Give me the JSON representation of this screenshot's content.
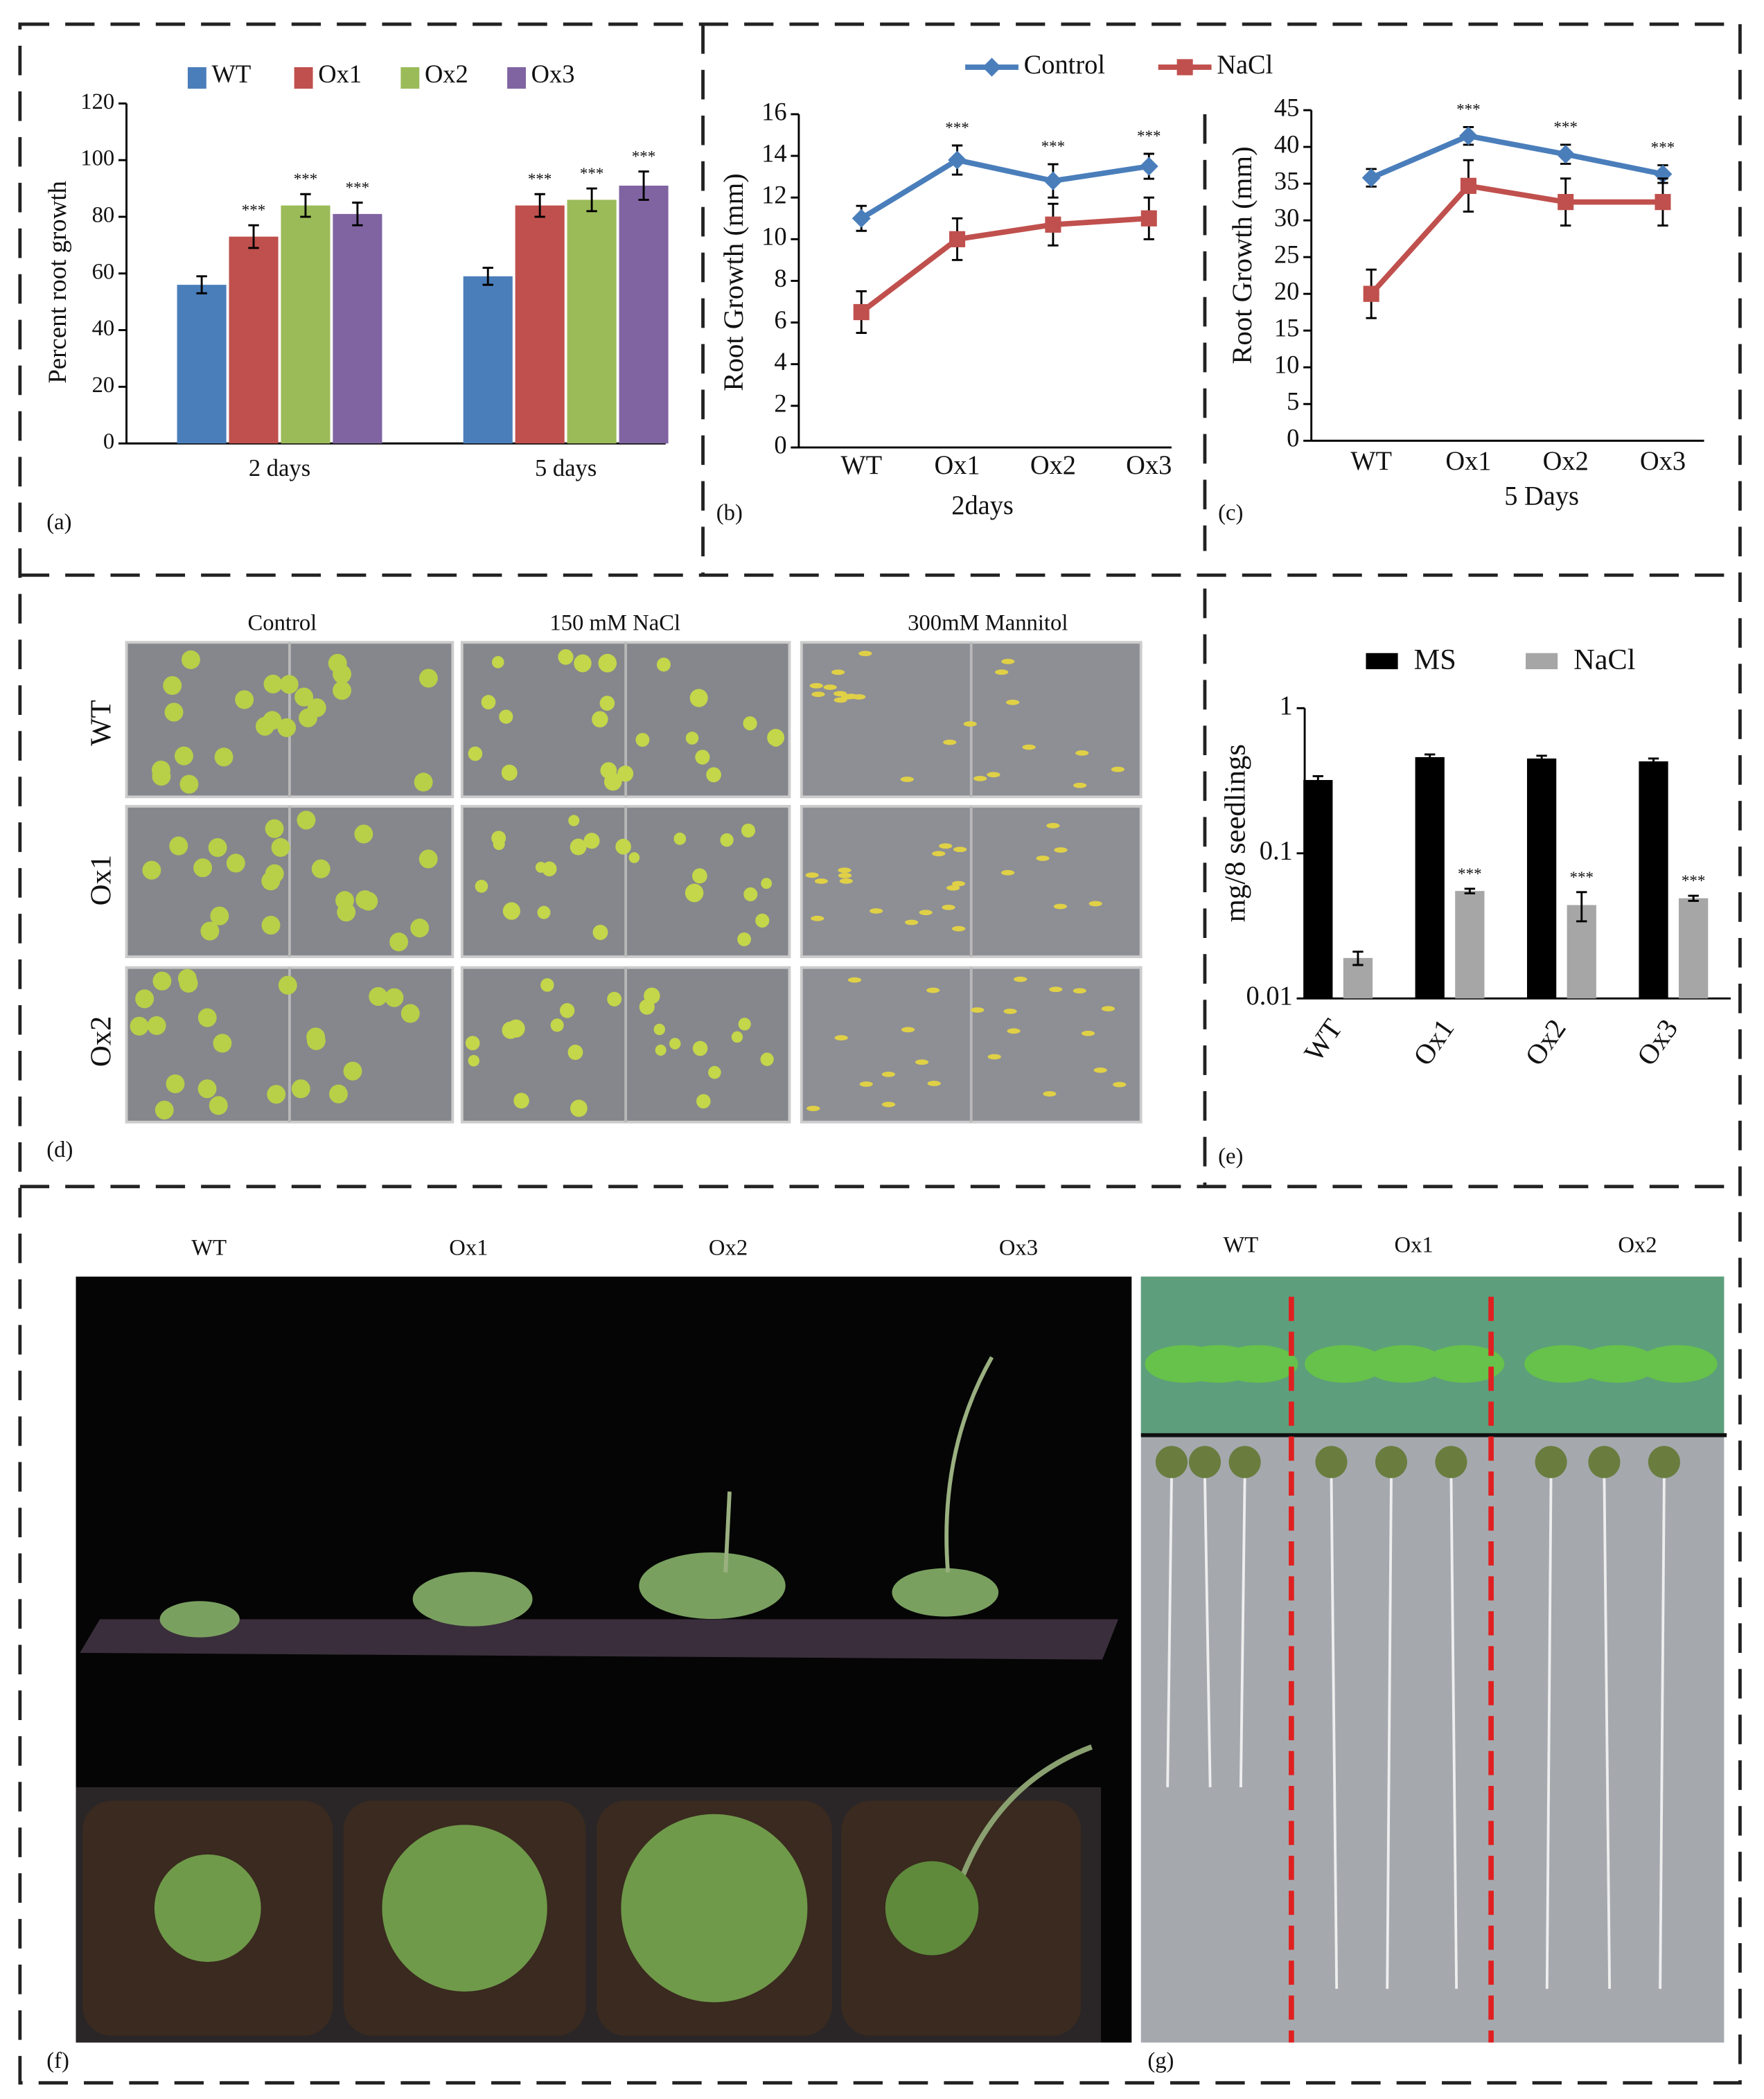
{
  "chart_data": [
    {
      "type": "bar",
      "y_label": "Percent root growth",
      "categories": [
        "2 days",
        "5 days"
      ],
      "ylim": [
        0,
        120
      ],
      "yticks": [
        0,
        20,
        40,
        60,
        80,
        100,
        120
      ],
      "legend": "top",
      "series": [
        {
          "name": "WT",
          "color": "#4a7ebb",
          "values": [
            56,
            59
          ],
          "errors": [
            3,
            3
          ]
        },
        {
          "name": "Ox1",
          "color": "#c0504d",
          "values": [
            73,
            84
          ],
          "errors": [
            4,
            4
          ],
          "annotations": [
            "***",
            "***"
          ]
        },
        {
          "name": "Ox2",
          "color": "#9bbb59",
          "values": [
            84,
            86
          ],
          "errors": [
            4,
            4
          ],
          "annotations": [
            "***",
            "***"
          ]
        },
        {
          "name": "Ox3",
          "color": "#8064a2",
          "values": [
            81,
            91
          ],
          "errors": [
            4,
            5
          ],
          "annotations": [
            "***",
            "***"
          ]
        }
      ]
    },
    {
      "type": "line",
      "y_label": "Root Growth (mm)",
      "x_label": "2days",
      "categories": [
        "WT",
        "Ox1",
        "Ox2",
        "Ox3"
      ],
      "ylim": [
        0,
        16
      ],
      "yticks": [
        0,
        2,
        4,
        6,
        8,
        10,
        12,
        14,
        16
      ],
      "legend": "top",
      "series": [
        {
          "name": "Control",
          "color": "#4a7ebb",
          "marker": "diamond",
          "values": [
            11,
            13.8,
            12.8,
            13.5
          ],
          "errors": [
            0.6,
            0.7,
            0.8,
            0.6
          ],
          "annotations": [
            null,
            "***",
            "***",
            "***"
          ]
        },
        {
          "name": "NaCl",
          "color": "#c0504d",
          "marker": "square",
          "values": [
            6.5,
            10,
            10.7,
            11
          ],
          "errors": [
            1,
            1,
            1,
            1
          ]
        }
      ]
    },
    {
      "type": "line",
      "y_label": "Root Growth (mm)",
      "x_label": "5 Days",
      "categories": [
        "WT",
        "Ox1",
        "Ox2",
        "Ox3"
      ],
      "ylim": [
        0,
        45
      ],
      "yticks": [
        0,
        5,
        10,
        15,
        20,
        25,
        30,
        35,
        40,
        45
      ],
      "series": [
        {
          "color": "#4a7ebb",
          "marker": "diamond",
          "values": [
            35.8,
            41.5,
            39,
            36.3
          ],
          "errors": [
            1.2,
            1.2,
            1.3,
            1.2
          ],
          "annotations": [
            null,
            "***",
            "***",
            "***"
          ]
        },
        {
          "color": "#c0504d",
          "marker": "square",
          "values": [
            20,
            34.7,
            32.5,
            32.5
          ],
          "errors": [
            3.3,
            3.5,
            3.2,
            3.2
          ]
        }
      ]
    },
    {
      "type": "bar",
      "log_scale": true,
      "y_label": "mg/8 seedlings",
      "categories": [
        "WT",
        "Ox1",
        "Ox2",
        "Ox3"
      ],
      "ylim": [
        0.01,
        1
      ],
      "yticks": [
        0.01,
        0.1,
        1
      ],
      "legend": "top",
      "series": [
        {
          "name": "MS",
          "color": "#000000",
          "values": [
            0.32,
            0.46,
            0.45,
            0.43
          ],
          "errors": [
            0.02,
            0.02,
            0.02,
            0.02
          ]
        },
        {
          "name": "NaCl",
          "color": "#a6a6a6",
          "values": [
            0.019,
            0.055,
            0.044,
            0.049
          ],
          "errors": [
            0.002,
            0.002,
            0.01,
            0.002
          ],
          "annotations": [
            null,
            "***",
            "***",
            "***"
          ]
        }
      ]
    }
  ],
  "figure": {
    "panel_labels": [
      "(a)",
      "(b)",
      "(c)",
      "(d)",
      "(e)",
      "(f)",
      "(g)"
    ],
    "d": {
      "columns": [
        "Control",
        "150 mM NaCl",
        "300mM Mannitol"
      ],
      "rows": [
        "WT",
        "Ox1",
        "Ox2"
      ]
    },
    "f": {
      "labels": [
        "WT",
        "Ox1",
        "Ox2",
        "Ox3"
      ]
    },
    "g": {
      "labels": [
        "WT",
        "Ox1",
        "Ox2"
      ]
    }
  }
}
